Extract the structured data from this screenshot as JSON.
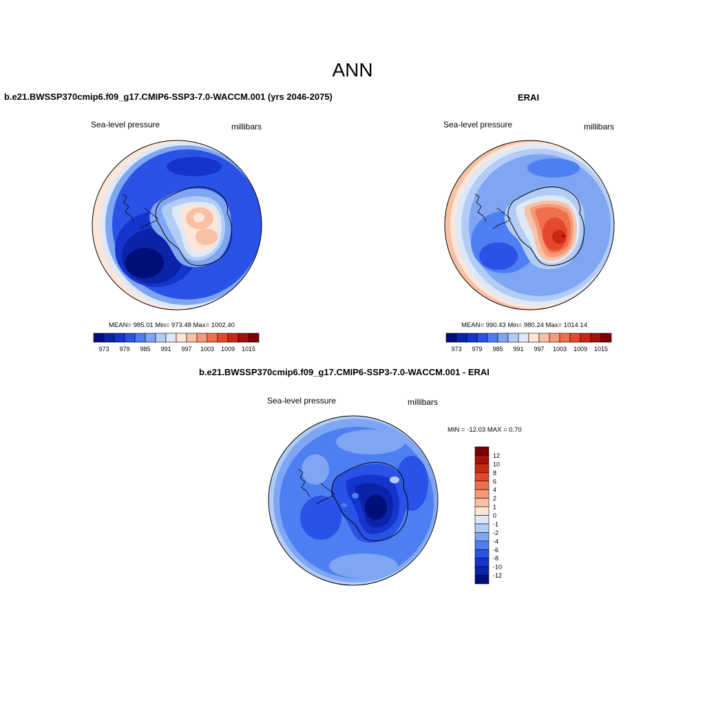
{
  "main_title": "ANN",
  "panels": [
    {
      "title": "b.e21.BWSSP370cmip6.f09_g17.CMIP6-SSP3-7.0-WACCM.001 (yrs 2046-2075)",
      "variable": "Sea-level pressure",
      "units": "millibars",
      "stats": "MEAN= 985.01  Min= 973.48  Max= 1002.40",
      "colorbar_ticks": [
        "973",
        "979",
        "985",
        "991",
        "997",
        "1003",
        "1009",
        "1015"
      ]
    },
    {
      "title": "ERAI",
      "variable": "Sea-level pressure",
      "units": "millibars",
      "stats": "MEAN= 990.43  Min= 980.24  Max= 1014.14",
      "colorbar_ticks": [
        "973",
        "979",
        "985",
        "991",
        "997",
        "1003",
        "1009",
        "1015"
      ]
    },
    {
      "title": "b.e21.BWSSP370cmip6.f09_g17.CMIP6-SSP3-7.0-WACCM.001 - ERAI",
      "variable": "Sea-level pressure",
      "units": "millibars",
      "stats": "MIN = -12.03 MAX =   0.70",
      "colorbar_ticks": [
        "12",
        "10",
        "8",
        "6",
        "4",
        "2",
        "1",
        "0",
        "-1",
        "-2",
        "-4",
        "-6",
        "-8",
        "-10",
        "-12"
      ]
    }
  ],
  "colors": {
    "abs_scale": [
      "#000e7a",
      "#0b23a8",
      "#1434cc",
      "#2a52e6",
      "#4d7ff2",
      "#7fa6f2",
      "#b3ccf5",
      "#dde8f8",
      "#fde6d8",
      "#f9c1a4",
      "#f59a79",
      "#f0704d",
      "#e3492a",
      "#c92817",
      "#a31109",
      "#7a0000"
    ],
    "diff_scale": [
      "#7a0000",
      "#a31109",
      "#c92817",
      "#e3492a",
      "#f0704d",
      "#f59a79",
      "#f9c1a4",
      "#fde6d8",
      "#dde8f8",
      "#b3ccf5",
      "#7fa6f2",
      "#4d7ff2",
      "#2a52e6",
      "#1434cc",
      "#0b23a8",
      "#000e7a"
    ]
  }
}
